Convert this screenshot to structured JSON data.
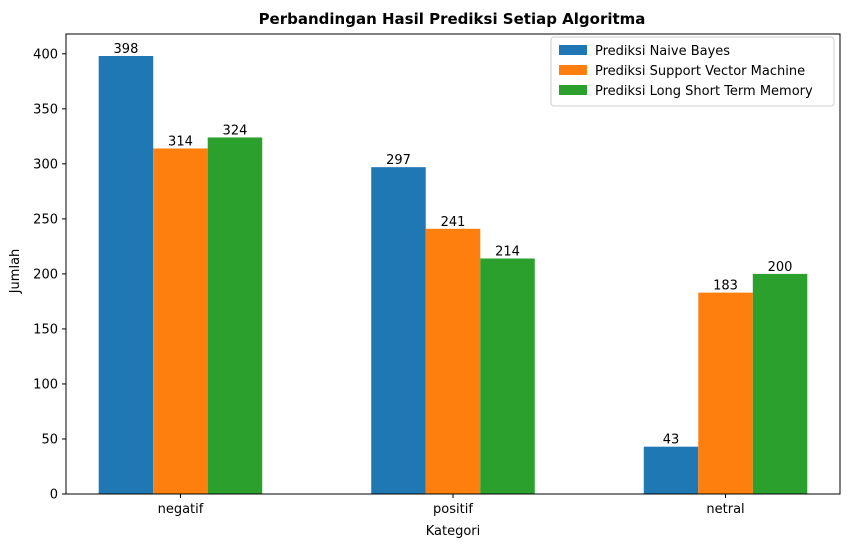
{
  "chart_data": {
    "type": "bar",
    "title": "Perbandingan Hasil Prediksi Setiap Algoritma",
    "xlabel": "Kategori",
    "ylabel": "Jumlah",
    "categories": [
      "negatif",
      "positif",
      "netral"
    ],
    "series": [
      {
        "name": "Prediksi Naive Bayes",
        "values": [
          398,
          297,
          43
        ],
        "color": "#1f77b4"
      },
      {
        "name": "Prediksi Support Vector Machine",
        "values": [
          314,
          241,
          183
        ],
        "color": "#ff7f0e"
      },
      {
        "name": "Prediksi Long Short Term Memory",
        "values": [
          324,
          214,
          200
        ],
        "color": "#2ca02c"
      }
    ],
    "ylim": [
      0,
      418
    ],
    "yticks": [
      0,
      50,
      100,
      150,
      200,
      250,
      300,
      350,
      400
    ],
    "grid": false,
    "legend_position": "top-right"
  }
}
